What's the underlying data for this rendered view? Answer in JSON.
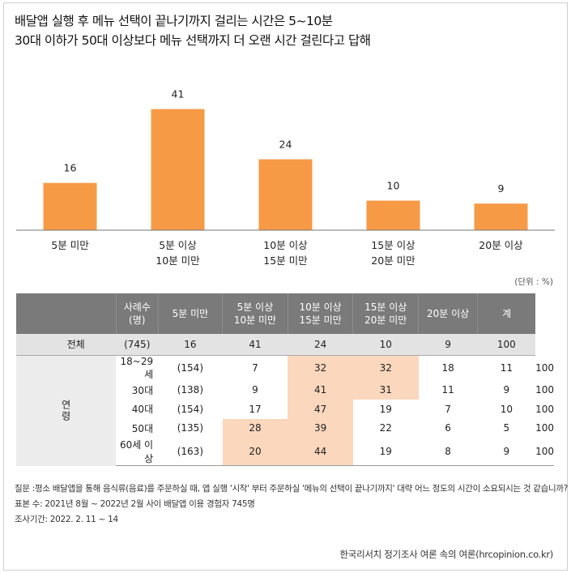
{
  "title_lines": [
    "배달앱 실행 후 메뉴 선택이 끝나기까지 걸리는 시간은 5~10분",
    "30대 이하가 50대 이상보다 메뉴 선택까지 더 오랜 시간 걸린다고 답해"
  ],
  "chart_data": {
    "type": "bar",
    "categories": [
      "5분 미만",
      "5분 이상\n10분 미만",
      "10분 이상\n15분 미만",
      "15분 이상\n20분 미만",
      "20분 이상"
    ],
    "values": [
      16,
      41,
      24,
      10,
      9
    ],
    "ylim": [
      0,
      45
    ],
    "bar_color": "#f79a46",
    "grid": false
  },
  "unit_label": "(단위 : %)",
  "table": {
    "headers": [
      "",
      "사례수\n(명)",
      "5분 미만",
      "5분 이상\n10분 미만",
      "10분 이상\n15분 미만",
      "15분 이상\n20분 미만",
      "20분 이상",
      "계"
    ],
    "total": {
      "label": "전체",
      "n": "(745)",
      "values": [
        "16",
        "41",
        "24",
        "10",
        "9",
        "100"
      ]
    },
    "group_label": "연령",
    "rows": [
      {
        "label": "18~29세",
        "n": "(154)",
        "values": [
          "7",
          "32",
          "32",
          "18",
          "11",
          "100"
        ],
        "highlight": [
          false,
          true,
          true,
          false,
          false,
          false
        ]
      },
      {
        "label": "30대",
        "n": "(138)",
        "values": [
          "9",
          "41",
          "31",
          "11",
          "9",
          "100"
        ],
        "highlight": [
          false,
          true,
          true,
          false,
          false,
          false
        ]
      },
      {
        "label": "40대",
        "n": "(154)",
        "values": [
          "17",
          "47",
          "19",
          "7",
          "10",
          "100"
        ],
        "highlight": [
          false,
          true,
          false,
          false,
          false,
          false
        ]
      },
      {
        "label": "50대",
        "n": "(135)",
        "values": [
          "28",
          "39",
          "22",
          "6",
          "5",
          "100"
        ],
        "highlight": [
          true,
          true,
          false,
          false,
          false,
          false
        ]
      },
      {
        "label": "60세 이상",
        "n": "(163)",
        "values": [
          "20",
          "44",
          "19",
          "8",
          "9",
          "100"
        ],
        "highlight": [
          true,
          true,
          false,
          false,
          false,
          false
        ]
      }
    ],
    "highlight_color": "#fad7bd",
    "header_color": "#7a7a7a"
  },
  "notes": {
    "question_label": "질문 : ",
    "question": "평소 배달앱을 통해 음식류(음료)를 주문하실 때, 앱 실행 '시작' 부터 주문하실 '메뉴의 선택이 끝나기까지' 대략 어느 정도의 시간이 소요되시는 것 같습니까?",
    "sample": "표본 수: 2021년 8월 ~ 2022년 2월 사이 배달앱  이용 경험자 745명",
    "period": "조사기간: 2022. 2. 11 ~ 14"
  },
  "source": "한국리서치 정기조사 여론 속의 여론(hrcopinion.co.kr)"
}
